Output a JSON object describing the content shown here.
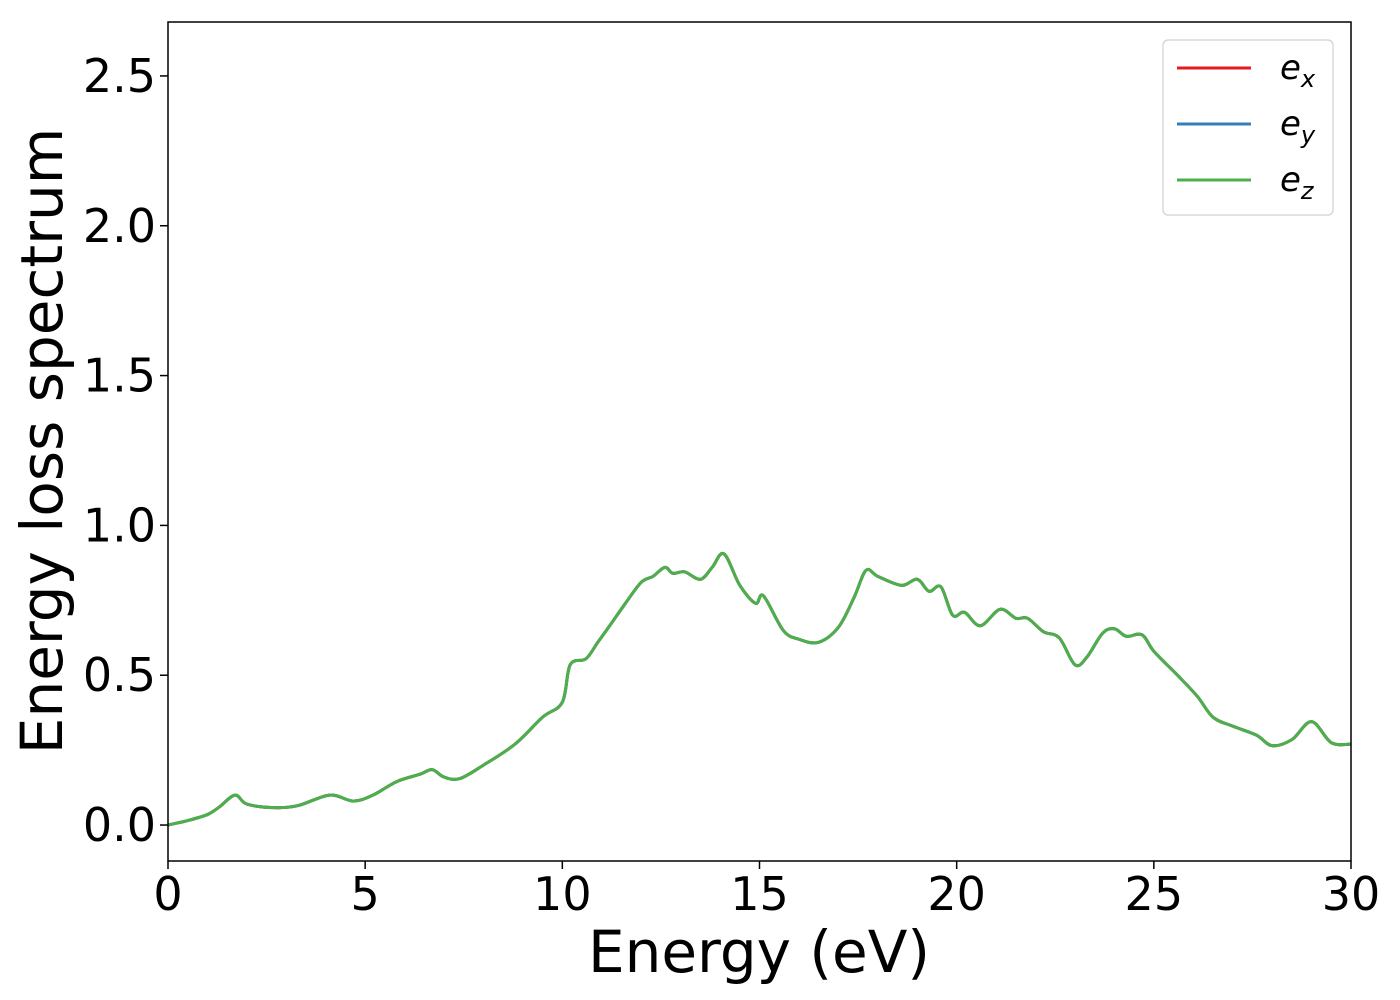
{
  "chart_data": {
    "type": "line",
    "title": "",
    "xlabel": "Energy (eV)",
    "ylabel": "Energy loss spectrum",
    "xlim": [
      0,
      30
    ],
    "ylim": [
      -0.12,
      2.68
    ],
    "xticks": [
      "0",
      "5",
      "10",
      "15",
      "20",
      "25",
      "30"
    ],
    "yticks": [
      "0.0",
      "0.5",
      "1.0",
      "1.5",
      "2.0",
      "2.5"
    ],
    "grid": false,
    "legend": "top-right",
    "x": [
      0,
      0.5,
      1.0,
      1.3,
      1.7,
      2.0,
      2.7,
      3.3,
      4.1,
      4.7,
      5.2,
      5.8,
      6.4,
      6.7,
      7.0,
      7.4,
      8.0,
      8.8,
      9.5,
      10.0,
      10.2,
      10.6,
      10.9,
      11.2,
      11.6,
      12.0,
      12.3,
      12.6,
      12.8,
      13.1,
      13.5,
      13.8,
      14.1,
      14.5,
      14.9,
      15.1,
      15.6,
      16.0,
      16.5,
      17.0,
      17.4,
      17.7,
      18.0,
      18.6,
      19.0,
      19.3,
      19.6,
      19.9,
      20.2,
      20.6,
      21.1,
      21.5,
      21.8,
      22.2,
      22.6,
      23.0,
      23.3,
      23.7,
      24.0,
      24.3,
      24.7,
      25.0,
      25.6,
      26.1,
      26.5,
      27.0,
      27.6,
      28.0,
      28.5,
      29.0,
      29.5,
      30.0
    ],
    "series": [
      {
        "name": "e",
        "subscript": "x",
        "color": "#e41a1c",
        "values": [
          0.0,
          0.015,
          0.035,
          0.06,
          0.1,
          0.07,
          0.058,
          0.065,
          0.1,
          0.08,
          0.1,
          0.145,
          0.17,
          0.185,
          0.16,
          0.155,
          0.2,
          0.27,
          0.36,
          0.41,
          0.535,
          0.555,
          0.61,
          0.665,
          0.74,
          0.81,
          0.83,
          0.86,
          0.84,
          0.845,
          0.82,
          0.86,
          0.905,
          0.8,
          0.74,
          0.765,
          0.65,
          0.62,
          0.61,
          0.66,
          0.76,
          0.85,
          0.83,
          0.8,
          0.82,
          0.78,
          0.795,
          0.7,
          0.71,
          0.665,
          0.72,
          0.69,
          0.69,
          0.645,
          0.625,
          0.535,
          0.56,
          0.64,
          0.655,
          0.63,
          0.635,
          0.58,
          0.5,
          0.43,
          0.36,
          0.33,
          0.3,
          0.265,
          0.285,
          0.345,
          0.275,
          0.27
        ]
      },
      {
        "name": "e",
        "subscript": "y",
        "color": "#377eb8",
        "values": [
          0.0,
          0.015,
          0.035,
          0.06,
          0.1,
          0.07,
          0.058,
          0.065,
          0.1,
          0.08,
          0.1,
          0.145,
          0.17,
          0.185,
          0.16,
          0.155,
          0.2,
          0.27,
          0.36,
          0.41,
          0.535,
          0.555,
          0.61,
          0.665,
          0.74,
          0.81,
          0.83,
          0.86,
          0.84,
          0.845,
          0.82,
          0.86,
          0.905,
          0.8,
          0.74,
          0.765,
          0.65,
          0.62,
          0.61,
          0.66,
          0.76,
          0.85,
          0.83,
          0.8,
          0.82,
          0.78,
          0.795,
          0.7,
          0.71,
          0.665,
          0.72,
          0.69,
          0.69,
          0.645,
          0.625,
          0.535,
          0.56,
          0.64,
          0.655,
          0.63,
          0.635,
          0.58,
          0.5,
          0.43,
          0.36,
          0.33,
          0.3,
          0.265,
          0.285,
          0.345,
          0.275,
          0.27
        ]
      },
      {
        "name": "e",
        "subscript": "z",
        "color": "#4daf4a",
        "values": [
          0.0,
          0.015,
          0.035,
          0.06,
          0.1,
          0.07,
          0.058,
          0.065,
          0.1,
          0.08,
          0.1,
          0.145,
          0.17,
          0.185,
          0.16,
          0.155,
          0.2,
          0.27,
          0.36,
          0.41,
          0.535,
          0.555,
          0.61,
          0.665,
          0.74,
          0.81,
          0.83,
          0.86,
          0.84,
          0.845,
          0.82,
          0.86,
          0.905,
          0.8,
          0.74,
          0.765,
          0.65,
          0.62,
          0.61,
          0.66,
          0.76,
          0.85,
          0.83,
          0.8,
          0.82,
          0.78,
          0.795,
          0.7,
          0.71,
          0.665,
          0.72,
          0.69,
          0.69,
          0.645,
          0.625,
          0.535,
          0.56,
          0.64,
          0.655,
          0.63,
          0.635,
          0.58,
          0.5,
          0.43,
          0.36,
          0.33,
          0.3,
          0.265,
          0.285,
          0.345,
          0.275,
          0.27
        ]
      }
    ]
  }
}
